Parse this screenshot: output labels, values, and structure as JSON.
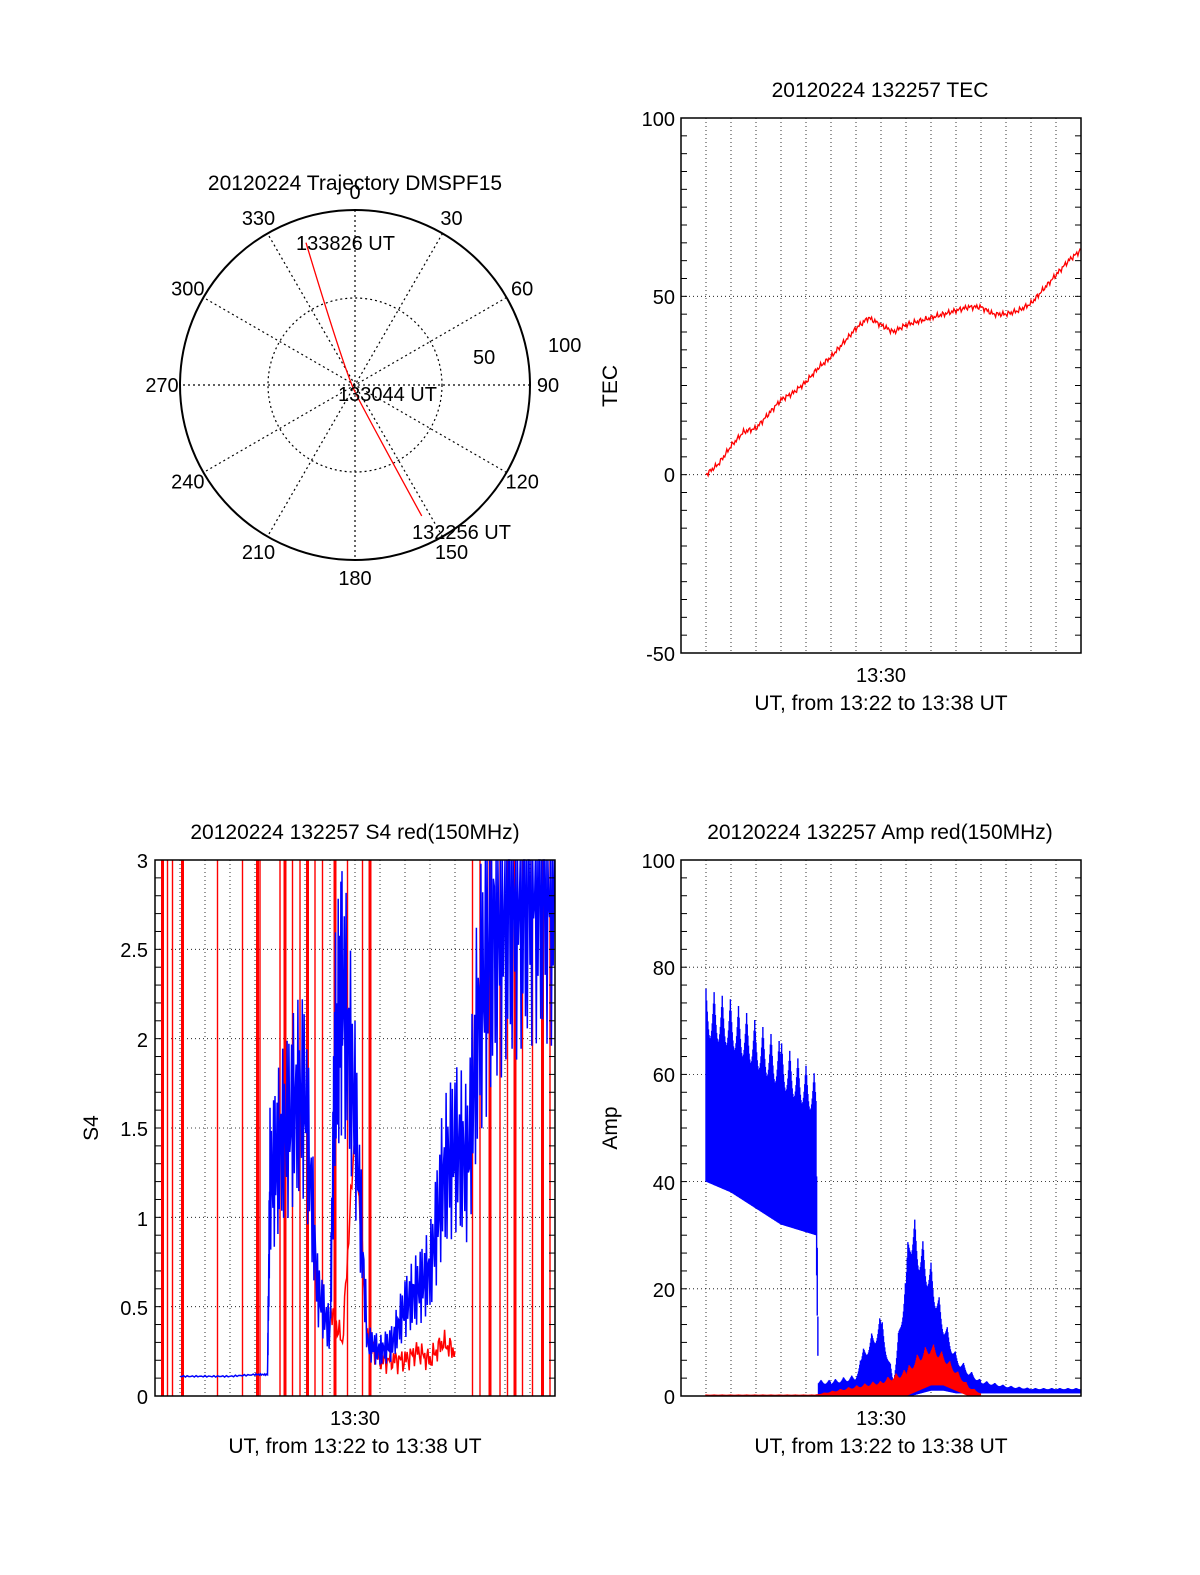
{
  "colors": {
    "red_series": "#ff0000",
    "blue_series": "#0000ff",
    "axis": "#000000",
    "background": "#ffffff"
  },
  "trajectory": {
    "title": "20120224 Trajectory DMSPF15",
    "azimuth_labels": [
      "0",
      "30",
      "60",
      "90",
      "120",
      "150",
      "180",
      "210",
      "240",
      "270",
      "300",
      "330"
    ],
    "ring_labels": [
      "50",
      "100"
    ],
    "annotations": {
      "end": "133826 UT",
      "mid": "133044 UT",
      "start": "132256 UT"
    },
    "chart_data": {
      "type": "scatter",
      "projection": "polar",
      "radial_unit": "ring label value",
      "points": [
        {
          "label": "133826 UT",
          "azimuth": 341,
          "r": 86
        },
        {
          "label": "133044 UT",
          "azimuth": 180,
          "r": 4
        },
        {
          "label": "132256 UT",
          "azimuth": 153,
          "r": 84
        }
      ]
    }
  },
  "tec": {
    "title": "20120224 132257 TEC",
    "ylabel": "TEC",
    "xlabel": "UT, from 13:22 to 13:38 UT",
    "yticks": [
      "100",
      "50",
      "0",
      "-50"
    ],
    "xtick": "13:30",
    "chart_data": {
      "type": "line",
      "ylim": [
        -50,
        100
      ],
      "x_unit": "minutes after 13:22 UT",
      "xlim": [
        0,
        16
      ],
      "grid": true,
      "series": [
        {
          "color": "red",
          "x": [
            1,
            1.5,
            2,
            2.5,
            3,
            3.5,
            4,
            4.5,
            5,
            5.5,
            6,
            6.5,
            7,
            7.5,
            8,
            8.5,
            9,
            9.5,
            10,
            10.5,
            11,
            11.5,
            12,
            12.5,
            13,
            13.5,
            14,
            14.5,
            15,
            15.5,
            16
          ],
          "y": [
            0,
            3,
            8,
            12,
            13,
            17,
            21,
            23,
            26,
            30,
            33,
            37,
            41,
            44,
            42,
            40,
            42,
            43,
            44,
            45,
            46,
            47,
            47,
            45,
            45,
            46,
            48,
            52,
            56,
            60,
            63
          ]
        }
      ]
    }
  },
  "s4": {
    "title": "20120224 132257 S4 red(150MHz)",
    "ylabel": "S4",
    "xlabel": "UT, from 13:22 to 13:38 UT",
    "yticks": [
      "3",
      "2.5",
      "2",
      "1.5",
      "1",
      "0.5",
      "0"
    ],
    "xtick": "13:30",
    "chart_data": {
      "type": "line",
      "ylim": [
        0,
        3
      ],
      "x_unit": "minutes after 13:22 UT",
      "xlim": [
        0,
        16
      ],
      "grid": true,
      "series": [
        {
          "color": "blue",
          "x": [
            1,
            2,
            3,
            4,
            4.5,
            4.6,
            5,
            5.5,
            6,
            6.5,
            7,
            7.2,
            7.5,
            8,
            8.5,
            9,
            9.5,
            10,
            10.5,
            11,
            11.5,
            12,
            12.5,
            13,
            13.5,
            14,
            14.5,
            15,
            15.5,
            16
          ],
          "y": [
            0.11,
            0.11,
            0.11,
            0.12,
            0.12,
            1.2,
            1.4,
            1.6,
            1.7,
            0.6,
            0.35,
            1.9,
            2.3,
            1.6,
            0.3,
            0.25,
            0.3,
            0.5,
            0.6,
            0.7,
            1.2,
            1.4,
            1.3,
            2.2,
            2.6,
            2.8,
            2.9,
            3.0,
            3.0,
            3.0
          ]
        },
        {
          "color": "red",
          "x": [
            7,
            7.5,
            8,
            8.5,
            9,
            9.5,
            10,
            10.5,
            11,
            11.5,
            12
          ],
          "y": [
            0.5,
            0.3,
            1.5,
            0.3,
            0.2,
            0.2,
            0.2,
            0.25,
            0.2,
            0.3,
            0.25
          ]
        }
      ],
      "spikes_red_x": [
        0.3,
        0.5,
        0.7,
        1.1,
        2.5,
        3.5,
        4.1,
        4.2,
        5.0,
        5.2,
        5.5,
        5.8,
        6.1,
        6.4,
        6.7,
        7.2,
        7.7,
        8.3,
        8.6,
        12.7,
        13.0,
        13.4,
        13.8,
        14.1,
        14.4,
        14.7,
        15.1,
        15.5,
        15.8
      ]
    }
  },
  "amp": {
    "title": "20120224 132257 Amp red(150MHz)",
    "ylabel": "Amp",
    "xlabel": "UT, from 13:22 to 13:38 UT",
    "yticks": [
      "100",
      "80",
      "60",
      "40",
      "20",
      "0"
    ],
    "xtick": "13:30",
    "chart_data": {
      "type": "area",
      "ylim": [
        0,
        100
      ],
      "x_unit": "minutes after 13:22 UT",
      "xlim": [
        0,
        16
      ],
      "grid": true,
      "series": [
        {
          "color": "blue",
          "x": [
            1,
            2,
            3,
            4,
            5.4,
            5.5,
            6,
            7,
            7.2,
            8,
            8.5,
            9,
            9.2,
            10,
            10.5,
            11,
            11.5,
            12,
            13,
            14,
            15,
            16
          ],
          "upper": [
            76,
            74,
            70,
            66,
            60,
            3,
            3,
            4,
            8,
            15,
            3,
            25,
            35,
            25,
            15,
            8,
            5,
            3,
            2,
            1.5,
            1.5,
            1.5
          ],
          "lower": [
            40,
            38,
            35,
            32,
            30,
            0,
            0,
            0,
            0,
            0,
            0,
            0,
            0,
            1,
            1,
            0.5,
            0.5,
            0.5,
            0.5,
            0.5,
            0.5,
            0.5
          ]
        },
        {
          "color": "red",
          "x": [
            1,
            5.4,
            8,
            9,
            9.5,
            10,
            10.5,
            11,
            11.5,
            12
          ],
          "upper": [
            0.3,
            0.3,
            3,
            5,
            8,
            10,
            8,
            5,
            2,
            0.5
          ],
          "lower": [
            0,
            0,
            0,
            0,
            1,
            2,
            2,
            1,
            0,
            0
          ]
        }
      ]
    }
  }
}
